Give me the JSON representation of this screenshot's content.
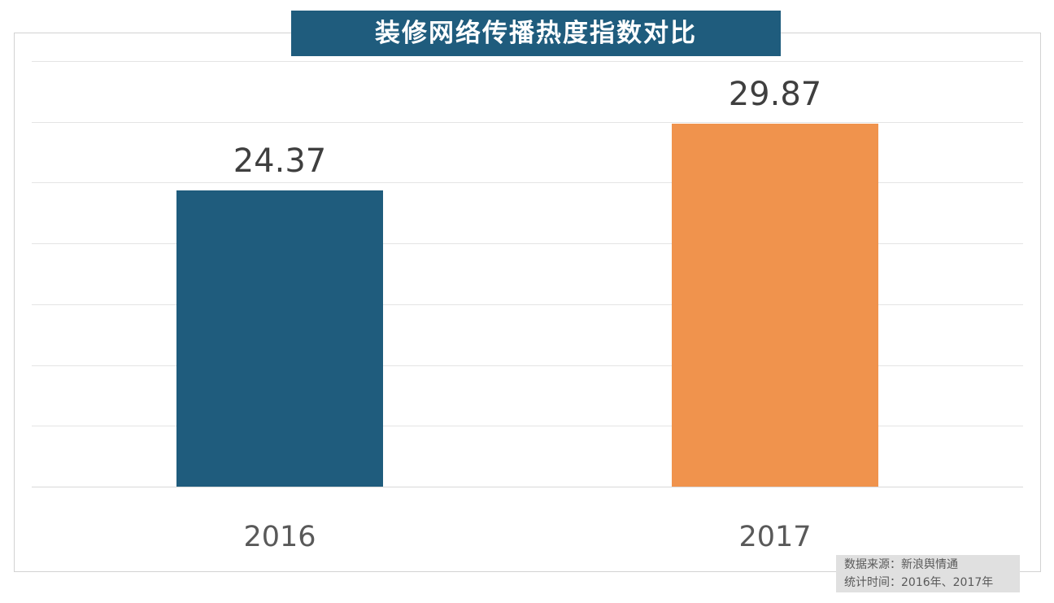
{
  "title": "装修网络传播热度指数对比",
  "source_note": {
    "line1": "数据来源：新浪舆情通",
    "line2": "统计时间：2016年、2017年"
  },
  "colors": {
    "banner_bg": "#1F5C7D",
    "bar_2016": "#1F5C7D",
    "bar_2017": "#F0934D",
    "gridline": "#e4e4e4",
    "value_label_text": "#3f3f3f",
    "axis_label_text": "#595959",
    "source_box_bg": "#e0e0e0"
  },
  "chart_data": {
    "type": "bar",
    "title": "装修网络传播热度指数对比",
    "categories": [
      "2016",
      "2017"
    ],
    "values": [
      24.37,
      29.87
    ],
    "value_labels": [
      "24.37",
      "29.87"
    ],
    "series_colors": [
      "#1F5C7D",
      "#F0934D"
    ],
    "xlabel": "",
    "ylabel": "",
    "ylim": [
      0,
      35
    ],
    "grid_step": 5,
    "grid": true,
    "legend": false,
    "y_tick_labels_shown": false,
    "value_labels_shown": true
  }
}
